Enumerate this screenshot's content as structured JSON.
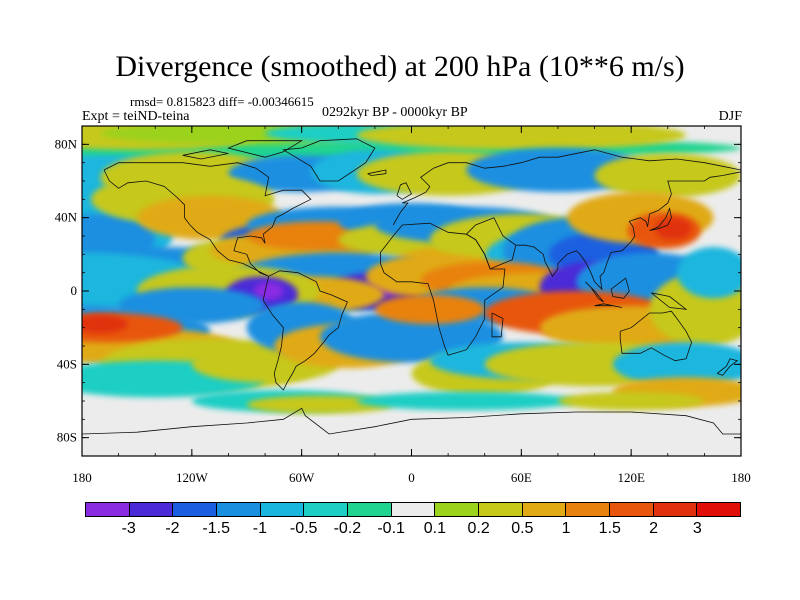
{
  "title": "Divergence (smoothed) at 200 hPa (10**6 m/s)",
  "stats_text": "rmsd= 0.815823 diff= -0.00346615",
  "experiment": "Expt = teiND-teina",
  "period": "0292kyr BP - 0000kyr BP",
  "season": "DJF",
  "axes": {
    "lat_ticks": [
      "80N",
      "40N",
      "0",
      "40S",
      "80S"
    ],
    "lon_ticks": [
      "180",
      "120W",
      "60W",
      "0",
      "60E",
      "120E",
      "180"
    ]
  },
  "colorbar": {
    "levels": [
      "-3",
      "-2",
      "-1.5",
      "-1",
      "-0.5",
      "-0.2",
      "-0.1",
      "0.1",
      "0.2",
      "0.5",
      "1",
      "1.5",
      "2",
      "3"
    ],
    "colors": [
      "#8a2be2",
      "#4b2bd8",
      "#1c5ee0",
      "#1a8fe0",
      "#1ab6de",
      "#1ecec4",
      "#20d490",
      "#ececec",
      "#9bd21c",
      "#c6c81a",
      "#e0aa14",
      "#e8820f",
      "#e8560e",
      "#e0300c",
      "#e01008"
    ]
  }
}
